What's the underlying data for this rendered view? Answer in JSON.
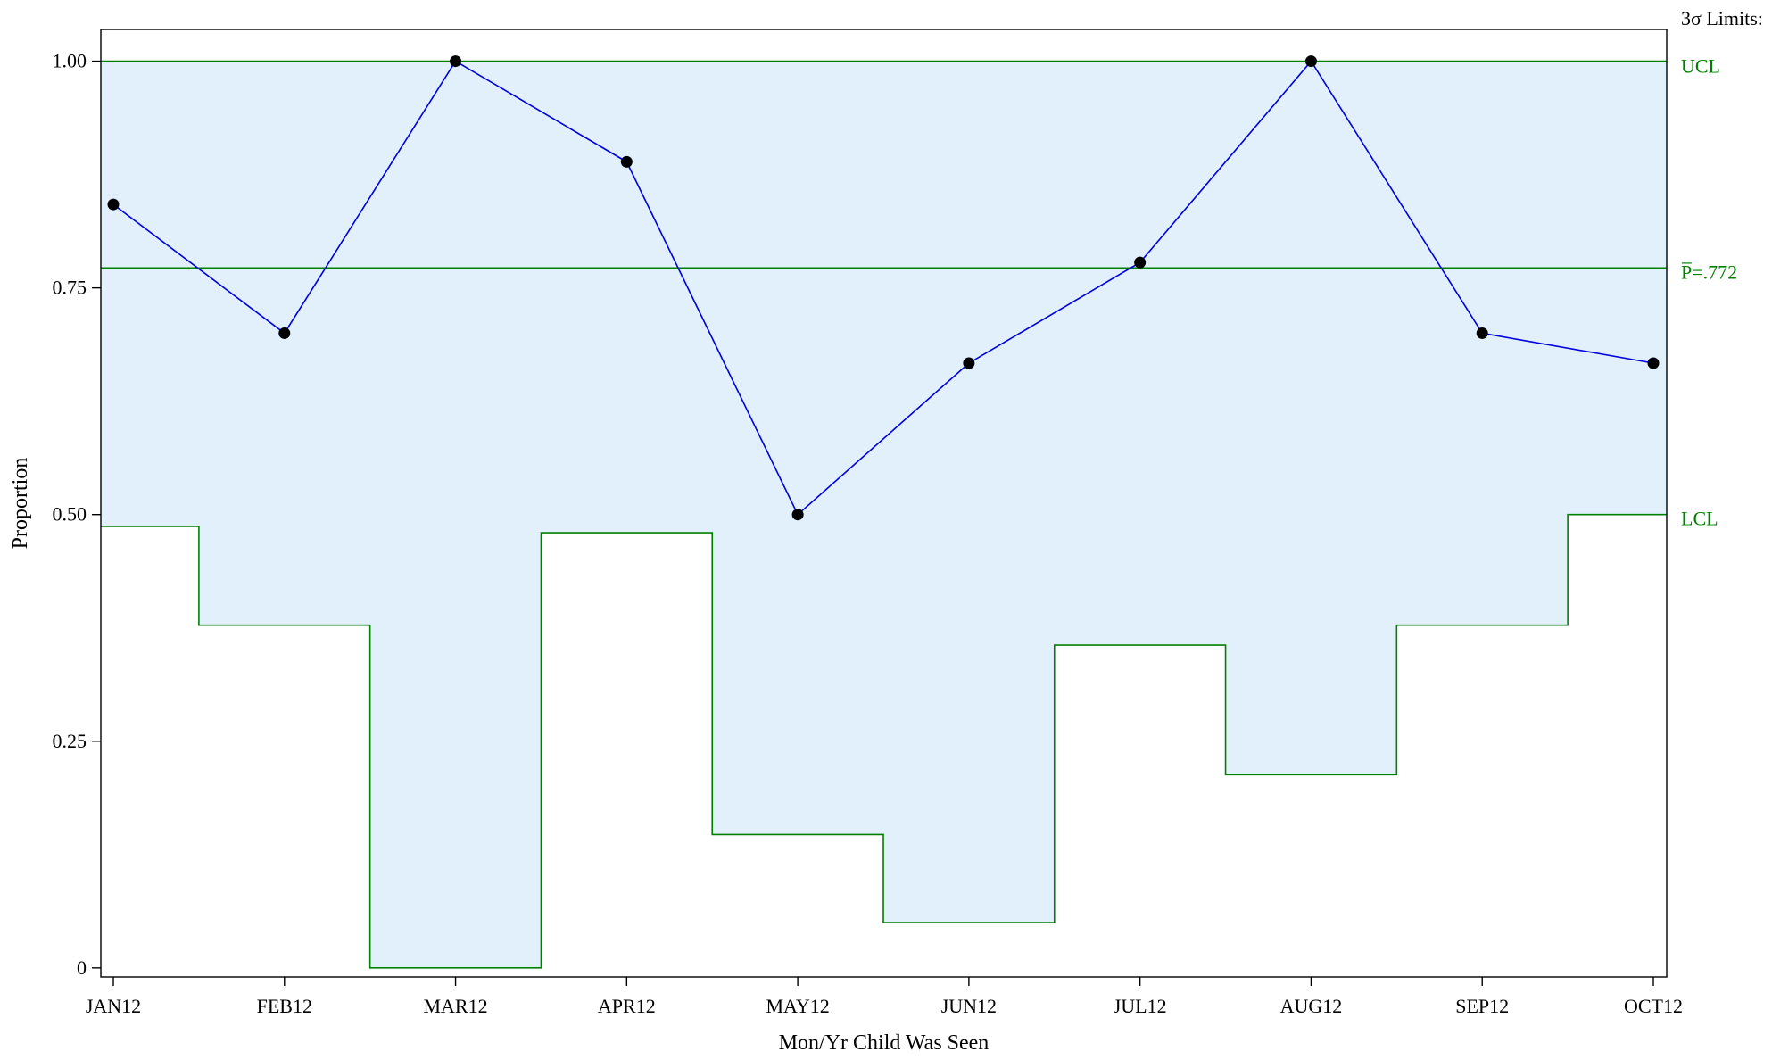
{
  "chart_data": {
    "type": "line",
    "xlabel": "Mon/Yr Child Was Seen",
    "ylabel": "Proportion",
    "categories": [
      "JAN12",
      "FEB12",
      "MAR12",
      "APR12",
      "MAY12",
      "JUN12",
      "JUL12",
      "AUG12",
      "SEP12",
      "OCT12"
    ],
    "ylim": [
      -0.01,
      1.035
    ],
    "yticks": [
      {
        "value": 0,
        "label": "0"
      },
      {
        "value": 0.25,
        "label": "0.25"
      },
      {
        "value": 0.5,
        "label": "0.50"
      },
      {
        "value": 0.75,
        "label": "0.75"
      },
      {
        "value": 1.0,
        "label": "1.00"
      }
    ],
    "series": [
      {
        "values": [
          0.842,
          0.7,
          1.0,
          0.889,
          0.5,
          0.667,
          0.778,
          1.0,
          0.7,
          0.667
        ]
      }
    ],
    "center_line": 0.772,
    "ucl": [
      1.0,
      1.0,
      1.0,
      1.0,
      1.0,
      1.0,
      1.0,
      1.0,
      1.0,
      1.0
    ],
    "lcl": [
      0.487,
      0.378,
      0.0,
      0.48,
      0.147,
      0.05,
      0.356,
      0.213,
      0.378,
      0.5
    ],
    "limits_heading": "3σ Limits:",
    "ucl_label": "UCL",
    "center_label": "P̅=.772",
    "lcl_label": "LCL",
    "grid": false,
    "colors": {
      "band_fill": "#e2f0fc",
      "series_line": "#0000dd",
      "marker": "#000000",
      "limits": "#008000",
      "frame": "#000000"
    }
  }
}
